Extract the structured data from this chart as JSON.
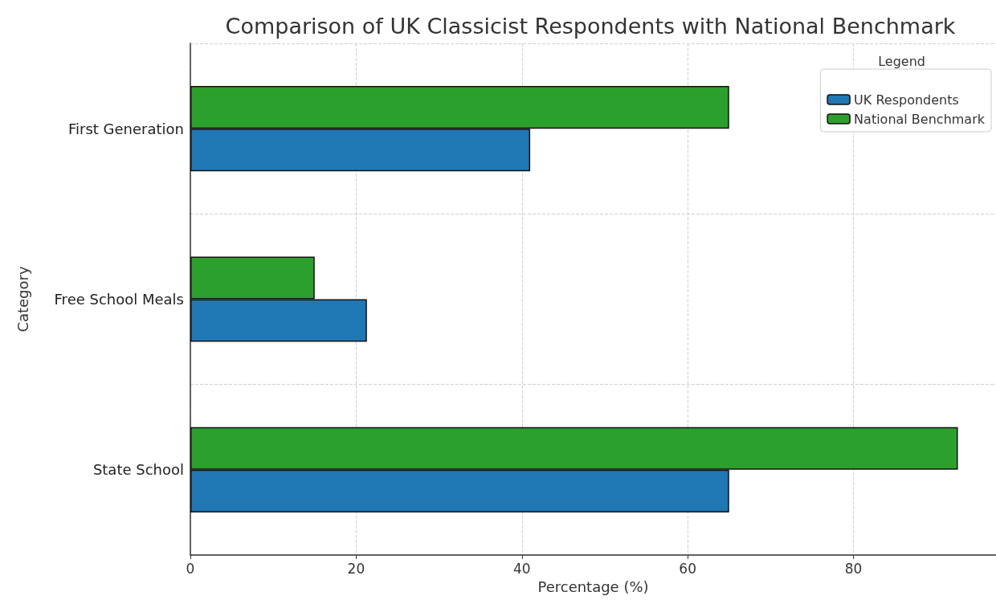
{
  "chart_data": {
    "type": "bar",
    "orientation": "horizontal",
    "title": "Comparison of UK Classicist Respondents with National Benchmark",
    "xlabel": "Percentage (%)",
    "ylabel": "Category",
    "legend_title": "Legend",
    "categories": [
      "First Generation",
      "Free School Meals",
      "State School"
    ],
    "series": [
      {
        "name": "UK Respondents",
        "color": "#1f77b4",
        "values": [
          41,
          21.3,
          65
        ]
      },
      {
        "name": "National Benchmark",
        "color": "#2ca02c",
        "values": [
          65,
          15,
          92.6
        ]
      }
    ],
    "xlim": [
      0,
      97.2
    ],
    "xticks": [
      0,
      20,
      40,
      60,
      80
    ],
    "grid": true,
    "legend": "top right"
  }
}
